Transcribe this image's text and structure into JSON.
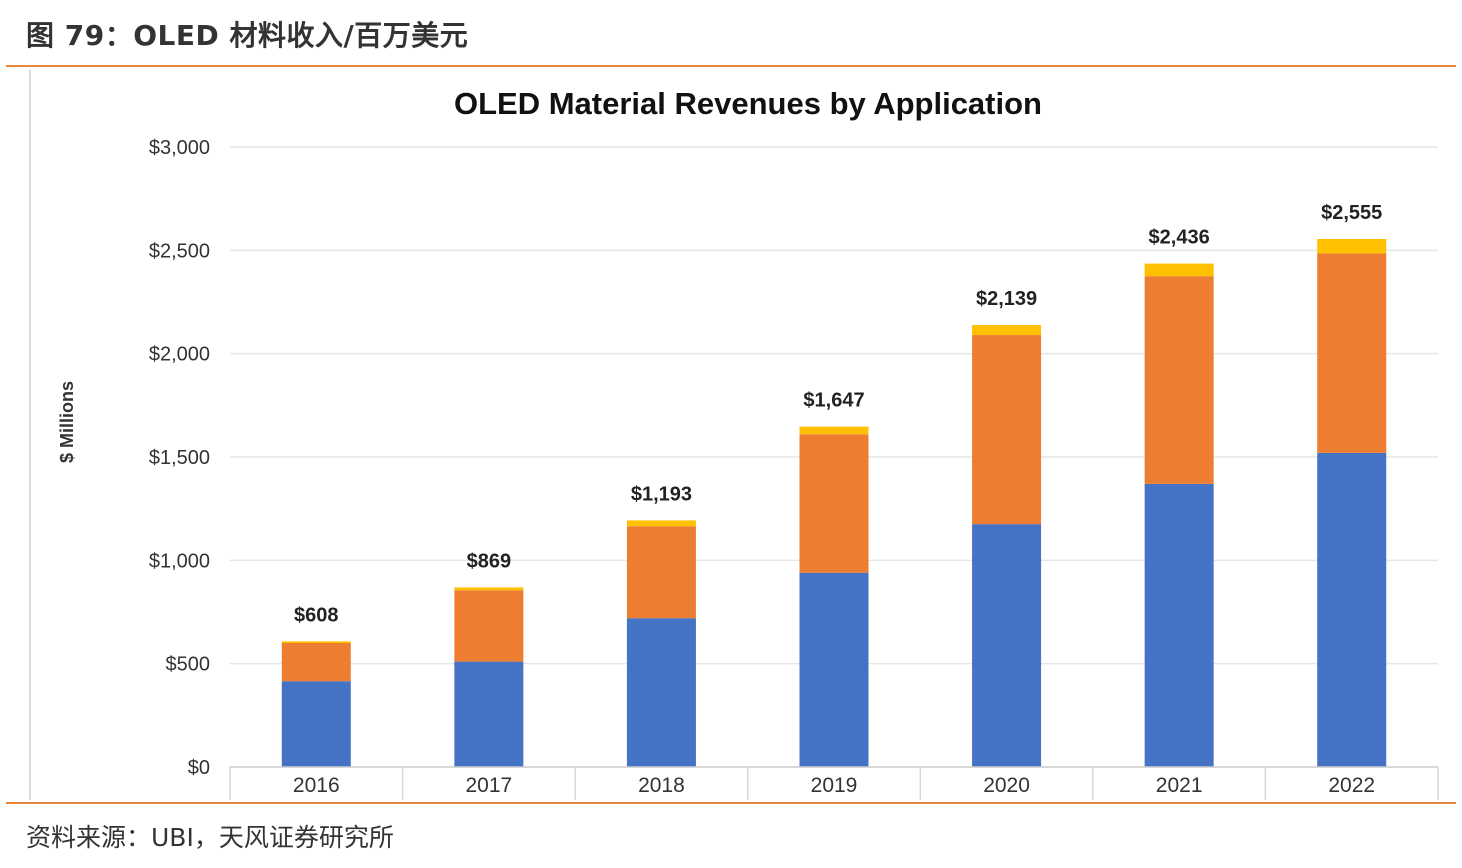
{
  "figure": {
    "caption": "图 79：OLED 材料收入/百万美元",
    "source": "资料来源：UBI，天风证券研究所"
  },
  "colors": {
    "series1": "#4472c4",
    "series2": "#ed7d31",
    "series3": "#ffc000",
    "rule": "#e8863a",
    "grid": "#e6e6e6"
  },
  "chart_data": {
    "type": "bar",
    "stacked": true,
    "title": "OLED Material Revenues by Application",
    "ylabel": "$ Millions",
    "xlabel": "",
    "ylim": [
      0,
      3000
    ],
    "yticks": [
      0,
      500,
      1000,
      1500,
      2000,
      2500,
      3000
    ],
    "ytick_labels": [
      "$0",
      "$500",
      "$1,000",
      "$1,500",
      "$2,000",
      "$2,500",
      "$3,000"
    ],
    "categories": [
      "2016",
      "2017",
      "2018",
      "2019",
      "2020",
      "2021",
      "2022"
    ],
    "series": [
      {
        "values": [
          415,
          510,
          720,
          940,
          1175,
          1370,
          1520
        ]
      },
      {
        "values": [
          185,
          345,
          445,
          670,
          915,
          1005,
          965
        ]
      },
      {
        "values": [
          8,
          14,
          28,
          37,
          49,
          61,
          70
        ]
      }
    ],
    "totals": [
      608,
      869,
      1193,
      1647,
      2139,
      2436,
      2555
    ],
    "total_labels": [
      "$608",
      "$869",
      "$1,193",
      "$1,647",
      "$2,139",
      "$2,436",
      "$2,555"
    ],
    "grid": true,
    "legend": "none"
  }
}
